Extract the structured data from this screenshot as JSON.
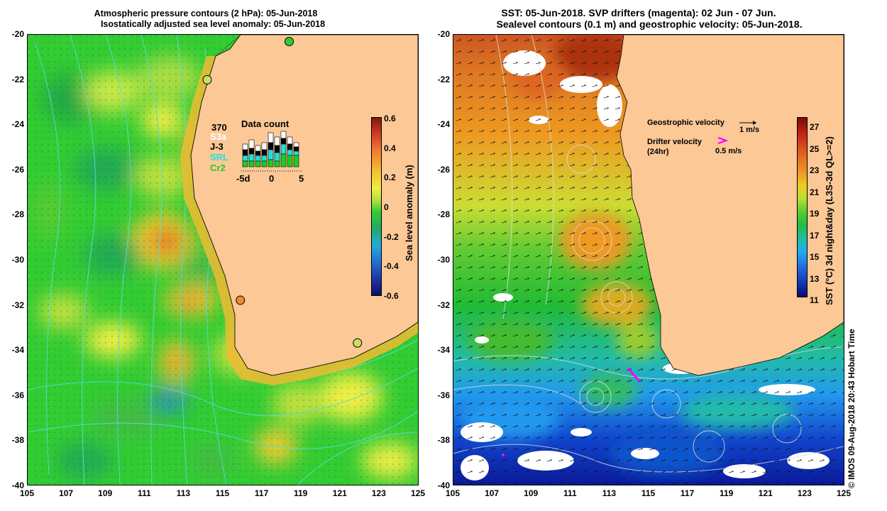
{
  "left_panel": {
    "title_line1": "Atmospheric pressure contours (2 hPa): 05-Jun-2018",
    "title_line2": "Isostatically adjusted sea level anomaly: 05-Jun-2018",
    "y_ticks": [
      "-20",
      "-22",
      "-24",
      "-26",
      "-28",
      "-30",
      "-32",
      "-34",
      "-36",
      "-38",
      "-40"
    ],
    "x_ticks": [
      "105",
      "107",
      "109",
      "111",
      "113",
      "115",
      "117",
      "119",
      "121",
      "123",
      "125"
    ],
    "colorbar": {
      "title": "Sea level anomaly (m)",
      "ticks": [
        "0.6",
        "0.4",
        "0.2",
        "0",
        "-0.2",
        "-0.4",
        "-0.6"
      ]
    },
    "data_count": {
      "title": "Data count",
      "total": "370",
      "sources": [
        {
          "label": "S3a",
          "color": "#ffffff"
        },
        {
          "label": "J-3",
          "color": "#000000"
        },
        {
          "label": "SRL",
          "color": "#22e0e0"
        },
        {
          "label": "Cr2",
          "color": "#22cc22"
        }
      ],
      "x_ticks": [
        "-5d",
        "0",
        "5"
      ]
    },
    "tide_gauges": [
      {
        "lon": 118.4,
        "lat": -20.3,
        "color": "#33cc33"
      },
      {
        "lon": 114.2,
        "lat": -22.0,
        "color": "#c8e060"
      },
      {
        "lon": 115.9,
        "lat": -31.8,
        "color": "#ee8833"
      },
      {
        "lon": 121.9,
        "lat": -33.7,
        "color": "#c8e060"
      }
    ]
  },
  "right_panel": {
    "title_line1": "SST: 05-Jun-2018. SVP drifters (magenta): 02 Jun - 07 Jun.",
    "title_line2": "Sealevel contours (0.1 m) and geostrophic velocity: 05-Jun-2018.",
    "y_ticks": [
      "-20",
      "-22",
      "-24",
      "-26",
      "-28",
      "-30",
      "-32",
      "-34",
      "-36",
      "-38",
      "-40"
    ],
    "x_ticks": [
      "105",
      "107",
      "109",
      "111",
      "113",
      "115",
      "117",
      "119",
      "121",
      "123",
      "125"
    ],
    "colorbar": {
      "title": "SST (°C) 3d night&day (L3S-3d QL>=2)",
      "ticks": [
        "27",
        "25",
        "23",
        "21",
        "19",
        "17",
        "15",
        "13",
        "11"
      ]
    },
    "legend": {
      "geo_label": "Geostrophic velocity",
      "geo_scale": "1 m/s",
      "drifter_label_line1": "Drifter velocity",
      "drifter_label_line2": "(24hr)",
      "drifter_scale": "0.5 m/s",
      "drifter_color": "#ff00ff"
    }
  },
  "credit": "© IMOS 09-Aug-2018 20:43 Hobart Time",
  "colors": {
    "land": "#fbc896",
    "contour": "#55dddd",
    "sst_contour": "#dddddd"
  }
}
